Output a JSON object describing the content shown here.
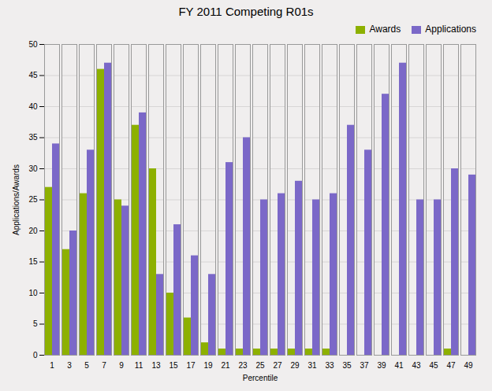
{
  "chart_data": {
    "type": "bar",
    "title": "FY 2011 Competing R01s",
    "xlabel": "Percentile",
    "ylabel": "Applications/Awards",
    "categories": [
      1,
      3,
      5,
      7,
      9,
      11,
      13,
      15,
      17,
      19,
      21,
      23,
      25,
      27,
      29,
      31,
      33,
      35,
      37,
      39,
      41,
      43,
      45,
      47,
      49
    ],
    "series": [
      {
        "name": "Awards",
        "color": "#8db000",
        "values": [
          27,
          17,
          26,
          46,
          25,
          37,
          30,
          10,
          6,
          2,
          1,
          1,
          1,
          1,
          1,
          1,
          1,
          0,
          0,
          0,
          0,
          0,
          0,
          1,
          0
        ]
      },
      {
        "name": "Applications",
        "color": "#7b68c8",
        "values": [
          34,
          20,
          33,
          47,
          24,
          39,
          13,
          21,
          16,
          13,
          31,
          35,
          25,
          26,
          28,
          25,
          26,
          37,
          33,
          42,
          47,
          25,
          25,
          30,
          29
        ]
      }
    ],
    "ylim": [
      0,
      50
    ],
    "yticks": [
      0,
      5,
      10,
      15,
      20,
      25,
      30,
      35,
      40,
      45,
      50
    ],
    "grid": true,
    "legend": "upper right"
  }
}
